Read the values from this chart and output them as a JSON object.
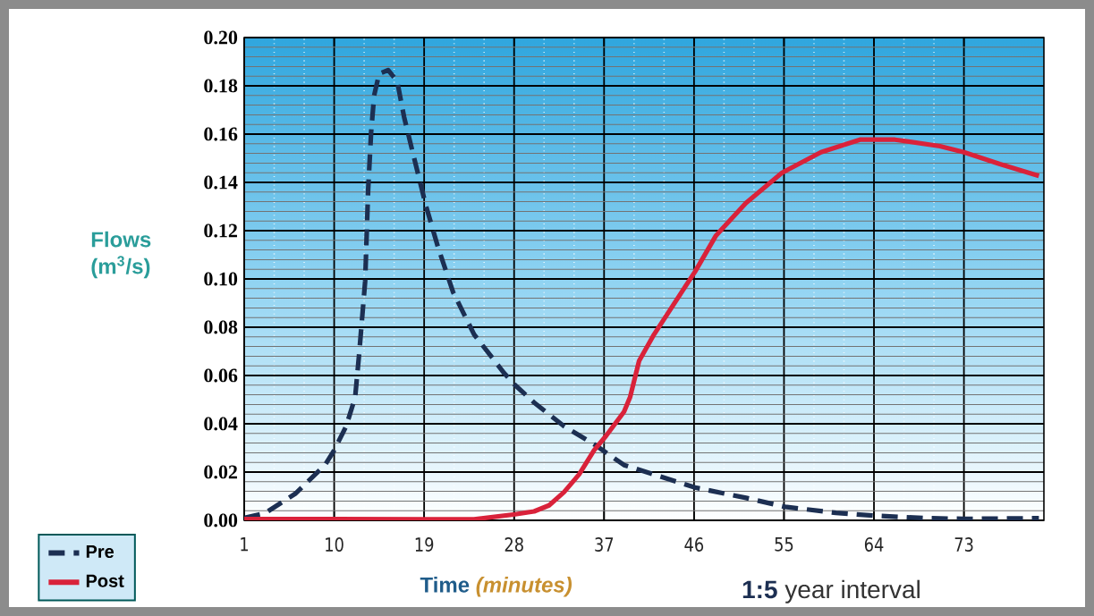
{
  "chart_data": {
    "type": "line",
    "xlabel": "Time *(minutes)*",
    "ylabel": "Flows (m$^{3}$/s)",
    "annotations": [
      "**1:5** year interval"
    ],
    "xlim": [
      1,
      81
    ],
    "xticks": [
      1,
      10,
      19,
      28,
      37,
      46,
      55,
      64,
      73
    ],
    "ylim": [
      0,
      0.2
    ],
    "yticks": [
      {
        "value": 0,
        "label": "0.00"
      },
      {
        "value": 0.02,
        "label": "0.02"
      },
      {
        "value": 0.04,
        "label": "0.04"
      },
      {
        "value": 0.06,
        "label": "0.06"
      },
      {
        "value": 0.08,
        "label": "0.08"
      },
      {
        "value": 0.1,
        "label": "0.10"
      },
      {
        "value": 0.12,
        "label": "0.12"
      },
      {
        "value": 0.14,
        "label": "0.14"
      },
      {
        "value": 0.16,
        "label": "0.16"
      },
      {
        "value": 0.18,
        "label": "0.18"
      },
      {
        "value": 0.2,
        "label": "0.20"
      }
    ],
    "grid": true,
    "legend": "bottom left",
    "marker": "none",
    "series": [
      {
        "name": "Pre",
        "color": "#1c2f52",
        "line_style": "dashed",
        "x": [
          1,
          3.1,
          6.1,
          9.1,
          10,
          11.2,
          12.1,
          12.5,
          13.1,
          13.4,
          13.7,
          14.0,
          14.5,
          15.4,
          16.3,
          17.0,
          18.0,
          19.2,
          20.4,
          21.9,
          24.0,
          27.0,
          28.1,
          30.0,
          33.0,
          36.0,
          39.0,
          42.0,
          46.1,
          51.2,
          55.1,
          60.2,
          64.1,
          69.1,
          73.0,
          80.5
        ],
        "values": [
          0.001,
          0.003,
          0.011,
          0.023,
          0.029,
          0.039,
          0.051,
          0.069,
          0.099,
          0.137,
          0.161,
          0.176,
          0.185,
          0.1865,
          0.182,
          0.167,
          0.15,
          0.13,
          0.113,
          0.0945,
          0.077,
          0.061,
          0.056,
          0.0488,
          0.039,
          0.0315,
          0.0229,
          0.019,
          0.0136,
          0.0093,
          0.0056,
          0.0031,
          0.0019,
          0.0009,
          0.0006,
          0.0009
        ]
      },
      {
        "name": "Post",
        "color": "#d9223a",
        "line_style": "solid",
        "x": [
          1,
          10,
          19.1,
          24,
          28.1,
          30,
          31.5,
          33,
          34.5,
          36,
          37.2,
          39,
          39.6,
          40.5,
          42,
          46.1,
          48.2,
          51.2,
          54.8,
          58.7,
          62.6,
          66.1,
          70.6,
          73,
          76.6,
          80.5
        ],
        "values": [
          0.0005,
          0.0005,
          0.0004,
          0.0004,
          0.0025,
          0.0037,
          0.0062,
          0.0117,
          0.019,
          0.029,
          0.035,
          0.045,
          0.051,
          0.066,
          0.077,
          0.103,
          0.118,
          0.1315,
          0.144,
          0.1525,
          0.1577,
          0.1577,
          0.155,
          0.1525,
          0.1476,
          0.1427
        ]
      }
    ]
  }
}
